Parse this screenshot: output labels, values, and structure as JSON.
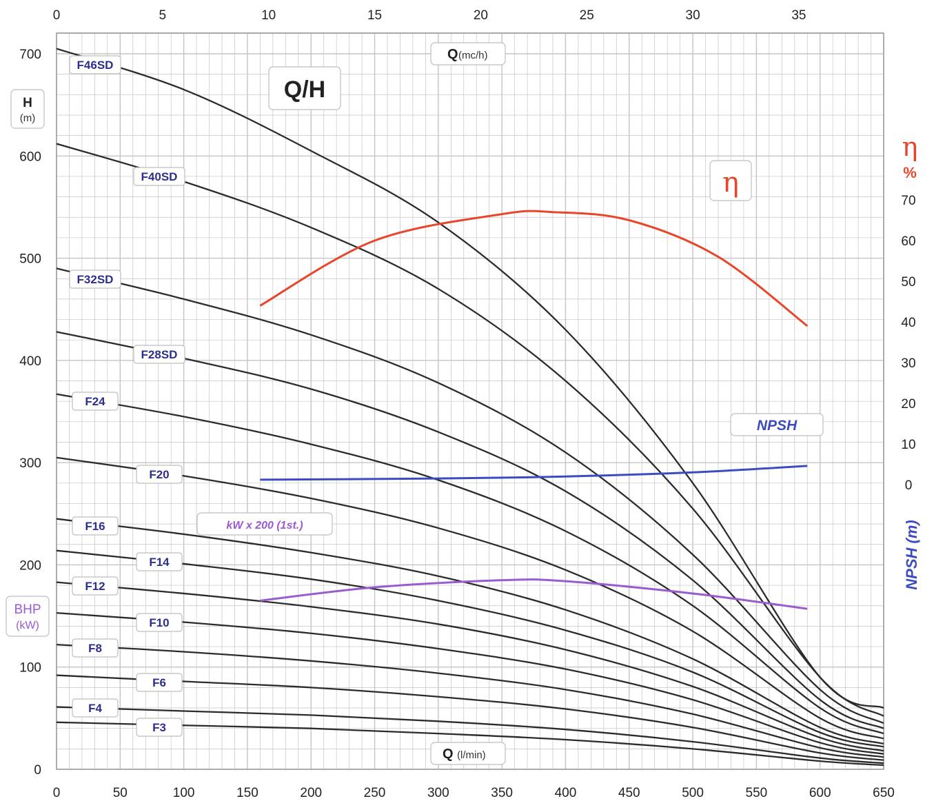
{
  "chart_data": {
    "type": "line",
    "title": "Q/H",
    "x_axis_bottom": {
      "label": "Q",
      "unit": "(l/min)",
      "range": [
        0,
        650
      ],
      "ticks": [
        0,
        50,
        100,
        150,
        200,
        250,
        300,
        350,
        400,
        450,
        500,
        550,
        600,
        650
      ]
    },
    "x_axis_top": {
      "label": "Q",
      "unit": "(mc/h)",
      "range": [
        0,
        39
      ],
      "ticks": [
        0,
        5,
        10,
        15,
        20,
        25,
        30,
        35
      ]
    },
    "y_axis_left": {
      "label": "H",
      "unit": "(m)",
      "range": [
        0,
        700
      ],
      "ticks": [
        0,
        100,
        200,
        300,
        400,
        500,
        600,
        700
      ]
    },
    "y_axis_left_secondary": {
      "label": "BHP",
      "unit": "(kW)"
    },
    "y_axis_right_eta": {
      "label": "η",
      "unit": "%",
      "range": [
        0,
        70
      ],
      "ticks": [
        0,
        10,
        20,
        30,
        40,
        50,
        60,
        70
      ]
    },
    "y_axis_right_npsh": {
      "label": "NPSH (m)"
    },
    "annotations": {
      "eta_label": "η",
      "npsh_label": "NPSH",
      "kw_label": "kW x 200 (1st.)"
    },
    "grid": true,
    "series": [
      {
        "name": "F46SD",
        "x": [
          0,
          100,
          200,
          300,
          400,
          500,
          600,
          650
        ],
        "y": [
          705,
          665,
          605,
          535,
          430,
          280,
          90,
          60
        ]
      },
      {
        "name": "F40SD",
        "x": [
          0,
          100,
          200,
          300,
          400,
          500,
          600,
          650
        ],
        "y": [
          612,
          575,
          530,
          470,
          380,
          255,
          90,
          52
        ]
      },
      {
        "name": "F32SD",
        "x": [
          0,
          100,
          200,
          300,
          400,
          500,
          600,
          650
        ],
        "y": [
          490,
          460,
          425,
          378,
          310,
          210,
          78,
          45
        ]
      },
      {
        "name": "F28SD",
        "x": [
          0,
          100,
          200,
          300,
          400,
          500,
          600,
          650
        ],
        "y": [
          428,
          402,
          372,
          330,
          272,
          185,
          68,
          40
        ]
      },
      {
        "name": "F24",
        "x": [
          0,
          100,
          200,
          300,
          400,
          500,
          600,
          650
        ],
        "y": [
          367,
          345,
          318,
          283,
          233,
          160,
          60,
          35
        ]
      },
      {
        "name": "F20",
        "x": [
          0,
          100,
          200,
          300,
          400,
          500,
          600,
          650
        ],
        "y": [
          305,
          287,
          265,
          236,
          195,
          135,
          50,
          30
        ]
      },
      {
        "name": "F16",
        "x": [
          0,
          100,
          200,
          300,
          400,
          500,
          600,
          650
        ],
        "y": [
          245,
          230,
          212,
          189,
          156,
          108,
          41,
          25
        ]
      },
      {
        "name": "F14",
        "x": [
          0,
          100,
          200,
          300,
          400,
          500,
          600,
          650
        ],
        "y": [
          214,
          201,
          186,
          165,
          136,
          95,
          36,
          22
        ]
      },
      {
        "name": "F12",
        "x": [
          0,
          100,
          200,
          300,
          400,
          500,
          600,
          650
        ],
        "y": [
          183,
          172,
          159,
          142,
          117,
          81,
          31,
          18
        ]
      },
      {
        "name": "F10",
        "x": [
          0,
          100,
          200,
          300,
          400,
          500,
          600,
          650
        ],
        "y": [
          153,
          144,
          133,
          118,
          98,
          68,
          26,
          15
        ]
      },
      {
        "name": "F8",
        "x": [
          0,
          100,
          200,
          300,
          400,
          500,
          600,
          650
        ],
        "y": [
          122,
          115,
          106,
          94,
          78,
          54,
          21,
          12
        ]
      },
      {
        "name": "F6",
        "x": [
          0,
          100,
          200,
          300,
          400,
          500,
          600,
          650
        ],
        "y": [
          92,
          86,
          80,
          71,
          59,
          41,
          16,
          9
        ]
      },
      {
        "name": "F4",
        "x": [
          0,
          100,
          200,
          300,
          400,
          500,
          600,
          650
        ],
        "y": [
          61,
          57,
          53,
          47,
          39,
          27,
          11,
          6
        ]
      },
      {
        "name": "F3",
        "x": [
          0,
          100,
          200,
          300,
          400,
          500,
          600,
          650
        ],
        "y": [
          46,
          43,
          40,
          35,
          29,
          20,
          8,
          4
        ]
      },
      {
        "name": "η",
        "axis": "right",
        "x": [
          160,
          250,
          350,
          390,
          450,
          520,
          590
        ],
        "y": [
          44,
          60,
          66.5,
          67,
          65,
          56,
          39
        ]
      },
      {
        "name": "NPSH",
        "axis": "right",
        "x": [
          160,
          300,
          400,
          500,
          590
        ],
        "y": [
          1.2,
          1.5,
          2,
          3,
          4.6
        ]
      },
      {
        "name": "kW x 200 (1st.)",
        "axis": "left",
        "x": [
          160,
          250,
          350,
          400,
          500,
          590
        ],
        "y": [
          165,
          178,
          185,
          184,
          172,
          157
        ]
      }
    ],
    "colors": {
      "curves": "#2b2b2b",
      "eta": "#e8462b",
      "npsh": "#3c4cc0",
      "bhp": "#9a5ad0",
      "grid": "#c4c4c4",
      "label_text": "#2c2f8f"
    }
  }
}
